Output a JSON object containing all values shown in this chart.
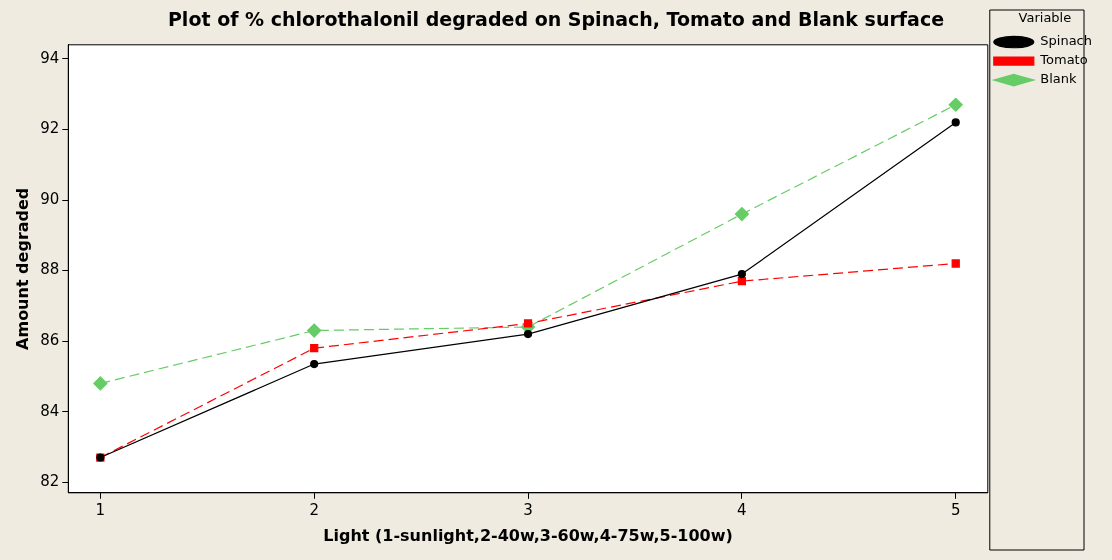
{
  "chart_data": {
    "type": "line",
    "title": "Plot of % chlorothalonil degraded on Spinach, Tomato and Blank surface",
    "xlabel": "Light (1-sunlight,2-40w,3-60w,4-75w,5-100w)",
    "ylabel": "Amount degraded",
    "legend_title": "Variable",
    "legend": "right",
    "grid": false,
    "x": [
      1,
      2,
      3,
      4,
      5
    ],
    "xlim": [
      0.85,
      5.15
    ],
    "xticks": [
      1,
      2,
      3,
      4,
      5
    ],
    "ylim": [
      81.7,
      94.4
    ],
    "yticks": [
      82,
      84,
      86,
      88,
      90,
      92,
      94
    ],
    "series": [
      {
        "name": "Spinach",
        "color": "#000000",
        "marker": "circle",
        "line_style": "solid",
        "values": [
          82.7,
          85.35,
          86.2,
          87.9,
          92.2
        ]
      },
      {
        "name": "Tomato",
        "color": "#ff0000",
        "marker": "square",
        "line_style": "dashed",
        "values": [
          82.7,
          85.8,
          86.5,
          87.7,
          88.2
        ]
      },
      {
        "name": "Blank",
        "color": "#66cc66",
        "marker": "diamond",
        "line_style": "dashed",
        "values": [
          84.8,
          86.3,
          86.4,
          89.6,
          92.7
        ]
      }
    ]
  }
}
